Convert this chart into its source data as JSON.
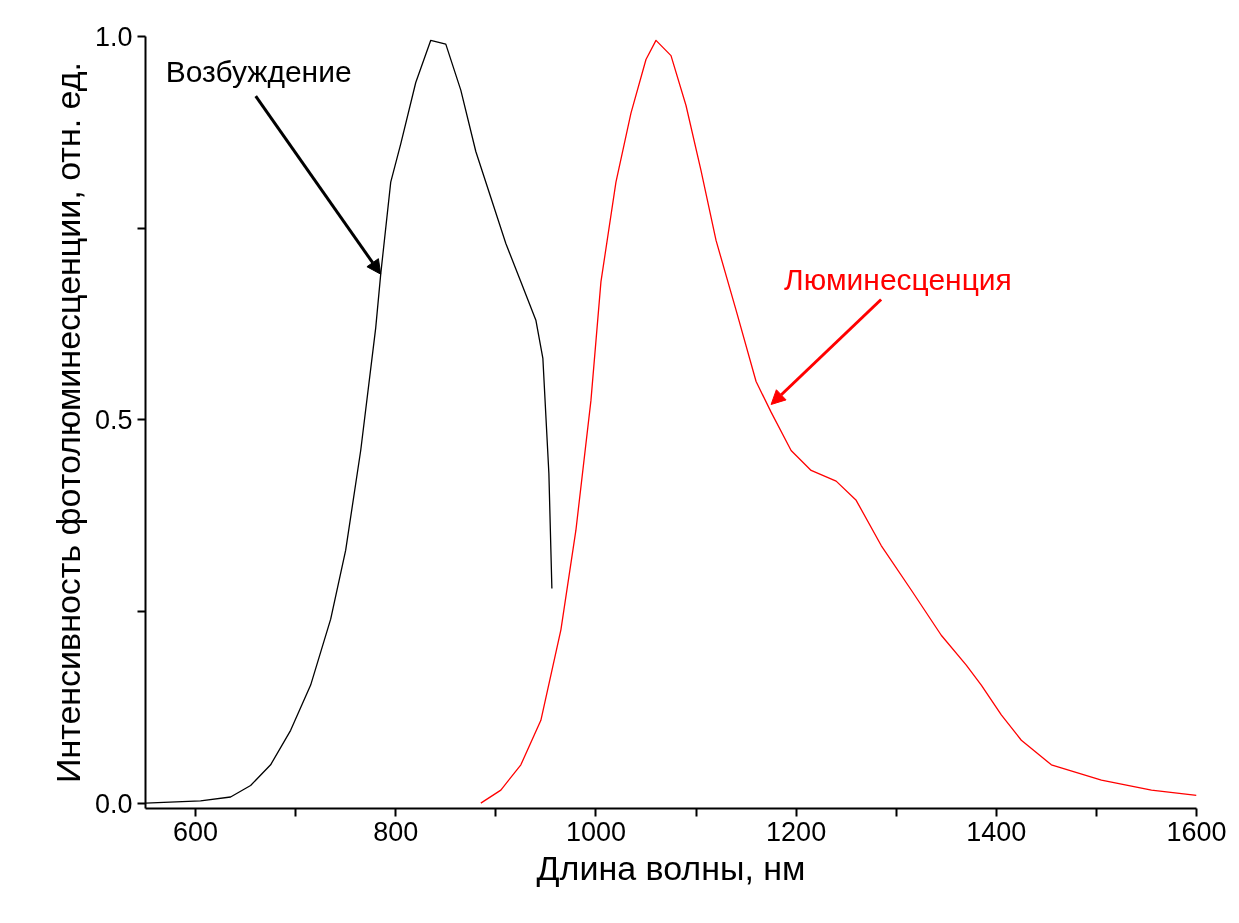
{
  "chart_data": {
    "type": "line",
    "xlabel": "Длина волны, нм",
    "ylabel": "Интенсивность фотолюминесценции, отн. ед.",
    "xlim": [
      550,
      1600
    ],
    "ylim": [
      -0.007,
      1.0
    ],
    "xticks": [
      600,
      {
        "value": 700,
        "label": null
      },
      800,
      {
        "value": 900,
        "label": null
      },
      1000,
      {
        "value": 1100,
        "label": null
      },
      1200,
      {
        "value": 1300,
        "label": null
      },
      1400,
      {
        "value": 1500,
        "label": null
      },
      1600
    ],
    "yticks": [
      {
        "value": 0,
        "label": "0.0"
      },
      {
        "value": 0.25,
        "label": null
      },
      0.5,
      {
        "value": 0.75,
        "label": null
      },
      {
        "value": 1,
        "label": "1.0"
      }
    ],
    "grid": false,
    "marker": "none",
    "line_style": "solid",
    "series": [
      {
        "color": "#000000",
        "x": [
          550,
          605,
          635,
          655,
          675,
          695,
          715,
          735,
          750,
          765,
          780,
          785,
          795,
          805,
          820,
          835,
          850,
          865,
          880,
          895,
          910,
          925,
          940,
          947,
          953,
          956
        ],
        "values": [
          0,
          0.003,
          0.008,
          0.023,
          0.05,
          0.095,
          0.154,
          0.24,
          0.33,
          0.46,
          0.62,
          0.69,
          0.81,
          0.86,
          0.94,
          0.995,
          0.99,
          0.93,
          0.85,
          0.79,
          0.73,
          0.68,
          0.63,
          0.58,
          0.43,
          0.28
        ]
      },
      {
        "color": "#ff0000",
        "x": [
          885,
          905,
          925,
          945,
          965,
          980,
          995,
          1005,
          1020,
          1035,
          1050,
          1060,
          1075,
          1090,
          1105,
          1120,
          1140,
          1160,
          1175,
          1195,
          1215,
          1240,
          1260,
          1285,
          1315,
          1345,
          1370,
          1385,
          1405,
          1425,
          1455,
          1505,
          1555,
          1600
        ],
        "values": [
          0,
          0.017,
          0.05,
          0.108,
          0.226,
          0.356,
          0.525,
          0.68,
          0.81,
          0.9,
          0.97,
          0.995,
          0.975,
          0.91,
          0.825,
          0.734,
          0.643,
          0.55,
          0.51,
          0.46,
          0.434,
          0.42,
          0.395,
          0.336,
          0.278,
          0.219,
          0.18,
          0.154,
          0.115,
          0.082,
          0.05,
          0.03,
          0.017,
          0.01
        ]
      }
    ],
    "annotations": [
      {
        "text": "Возбуждение",
        "x": 785,
        "y": 0.69
      },
      {
        "text": "Люминесценция",
        "x": 1175,
        "y": 0.52
      }
    ]
  }
}
